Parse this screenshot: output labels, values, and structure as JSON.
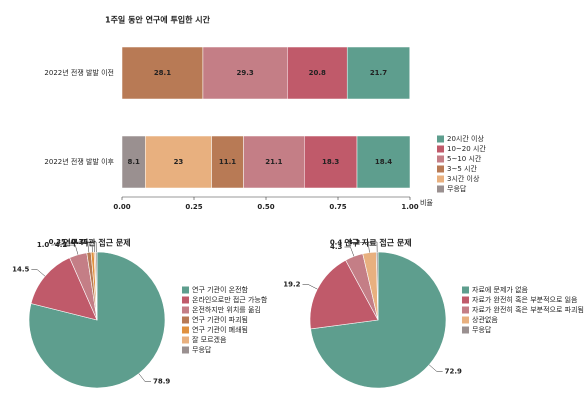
{
  "chart_data": [
    {
      "type": "bar",
      "orientation": "horizontal",
      "stacked": true,
      "title": "1주일 동안 연구에 투입한 시간",
      "categories": [
        "2022년 전쟁 발발 이전",
        "2022년 전쟁 발발 이후"
      ],
      "xlabel": "비율",
      "xlim": [
        0,
        1
      ],
      "xticks": [
        {
          "value": 0,
          "label": "0.00"
        },
        {
          "value": 0.25,
          "label": "0.25"
        },
        {
          "value": 0.5,
          "label": "0.50"
        },
        {
          "value": 0.75,
          "label": "0.75"
        },
        {
          "value": 1,
          "label": "1.00"
        }
      ],
      "series": [
        {
          "name": "20시간 이상",
          "color": "#5e9e8e",
          "values": [
            0.217,
            0.184
          ],
          "value_labels": [
            "21.7",
            "18.4"
          ]
        },
        {
          "name": "10~20 시간",
          "color": "#c05a6a",
          "values": [
            0.208,
            0.183
          ],
          "value_labels": [
            "20.8",
            "18.3"
          ]
        },
        {
          "name": "5~10 시간",
          "color": "#c47e86",
          "values": [
            0.293,
            0.211
          ],
          "value_labels": [
            "29.3",
            "21.1"
          ]
        },
        {
          "name": "3~5 시간",
          "color": "#b87a55",
          "values": [
            0.281,
            0.111
          ],
          "value_labels": [
            "28.1",
            "11.1"
          ]
        },
        {
          "name": "3시간 이상",
          "color": "#e8b07f",
          "values": [
            null,
            0.23
          ],
          "value_labels": [
            null,
            "23"
          ]
        },
        {
          "name": "무응답",
          "color": "#9a9090",
          "values": [
            null,
            0.081
          ],
          "value_labels": [
            null,
            "8.1"
          ]
        }
      ]
    },
    {
      "type": "pie",
      "title": "연구 기관 접근 문제",
      "categories": [
        "연구 기관이 온전함",
        "온라인으로만 접근 가능함",
        "온전하지만 위치를 옮김",
        "연구 기관이 파괴됨",
        "연구 기관이 폐쇄됨",
        "잘 모르겠음",
        "무응답"
      ],
      "values": [
        78.9,
        14.5,
        4.2,
        1.0,
        0.7,
        0.35,
        0.35
      ],
      "value_labels": [
        "78.9",
        "14.5",
        "4.2",
        "1.0",
        "0.7",
        "0.35",
        "0.35"
      ],
      "colors": [
        "#5e9e8e",
        "#c05a6a",
        "#c47e86",
        "#b87a55",
        "#e0913f",
        "#e8b07f",
        "#9a9090"
      ]
    },
    {
      "type": "pie",
      "title": "연구 자료 접근 문제",
      "categories": [
        "자료에 문제가 없음",
        "자료가 완전히 혹은 부분적으로 잃음",
        "자료가 완전히 혹은 부분적으로 파괴됨",
        "상관없음",
        "무응답"
      ],
      "values": [
        72.9,
        19.2,
        4.3,
        3.2,
        0.4
      ],
      "value_labels": [
        "72.9",
        "19.2",
        "4.3",
        "3.2",
        "0.4"
      ],
      "colors": [
        "#5e9e8e",
        "#c05a6a",
        "#c47e86",
        "#e8b07f",
        "#9a9090"
      ]
    }
  ]
}
